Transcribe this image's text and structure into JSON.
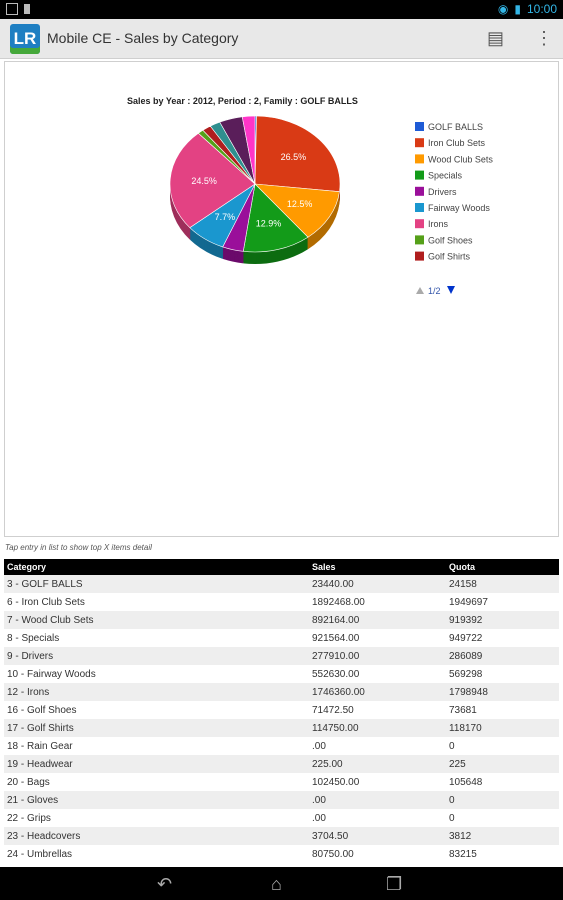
{
  "status_bar": {
    "time": "10:00"
  },
  "app": {
    "logo_text": "LR",
    "title": "Mobile CE - Sales by Category"
  },
  "chart_data": {
    "type": "pie",
    "title": "Sales by Year : 2012, Period : 2, Family : GOLF BALLS",
    "legend_placement": "right",
    "slices": [
      {
        "label": "GOLF BALLS",
        "value": 0.3,
        "color": "#1e5bd6"
      },
      {
        "label": "Iron Club Sets",
        "value": 26.5,
        "color": "#d93a15"
      },
      {
        "label": "Wood Club Sets",
        "value": 12.5,
        "color": "#ff9a00"
      },
      {
        "label": "Specials",
        "value": 12.9,
        "color": "#139b19"
      },
      {
        "label": "Drivers",
        "value": 4.0,
        "color": "#9a0f9a"
      },
      {
        "label": "Fairway Woods",
        "value": 7.7,
        "color": "#1a97cf"
      },
      {
        "label": "Irons",
        "value": 24.5,
        "color": "#e34283"
      },
      {
        "label": "Golf Shoes",
        "value": 1.1,
        "color": "#55a019"
      },
      {
        "label": "Golf Shirts",
        "value": 1.7,
        "color": "#b01e1e"
      },
      {
        "label": "",
        "value": 2.0,
        "color": "#2f8f8f"
      },
      {
        "label": "",
        "value": 4.4,
        "color": "#5a1e5a"
      },
      {
        "label": "",
        "value": 2.4,
        "color": "#ff35c8"
      }
    ],
    "data_labels": [
      "26.5%",
      "12.5%",
      "12.9%",
      "7.7%",
      "24.5%"
    ],
    "pagination": "1/2"
  },
  "hint": "Tap entry in list to show top X items detail",
  "table": {
    "headers": [
      "Category",
      "Sales",
      "Quota"
    ],
    "rows": [
      [
        "3 - GOLF BALLS",
        "23440.00",
        "24158"
      ],
      [
        "6 - Iron Club Sets",
        "1892468.00",
        "1949697"
      ],
      [
        "7 - Wood Club Sets",
        "892164.00",
        "919392"
      ],
      [
        "8 - Specials",
        "921564.00",
        "949722"
      ],
      [
        "9 - Drivers",
        "277910.00",
        "286089"
      ],
      [
        "10 - Fairway Woods",
        "552630.00",
        "569298"
      ],
      [
        "12 - Irons",
        "1746360.00",
        "1798948"
      ],
      [
        "16 - Golf Shoes",
        "71472.50",
        "73681"
      ],
      [
        "17 - Golf Shirts",
        "114750.00",
        "118170"
      ],
      [
        "18 - Rain Gear",
        ".00",
        "0"
      ],
      [
        "19 - Headwear",
        "225.00",
        "225"
      ],
      [
        "20 - Bags",
        "102450.00",
        "105648"
      ],
      [
        "21 - Gloves",
        ".00",
        "0"
      ],
      [
        "22 - Grips",
        ".00",
        "0"
      ],
      [
        "23 - Headcovers",
        "3704.50",
        "3812"
      ],
      [
        "24 - Umbrellas",
        "80750.00",
        "83215"
      ]
    ]
  }
}
